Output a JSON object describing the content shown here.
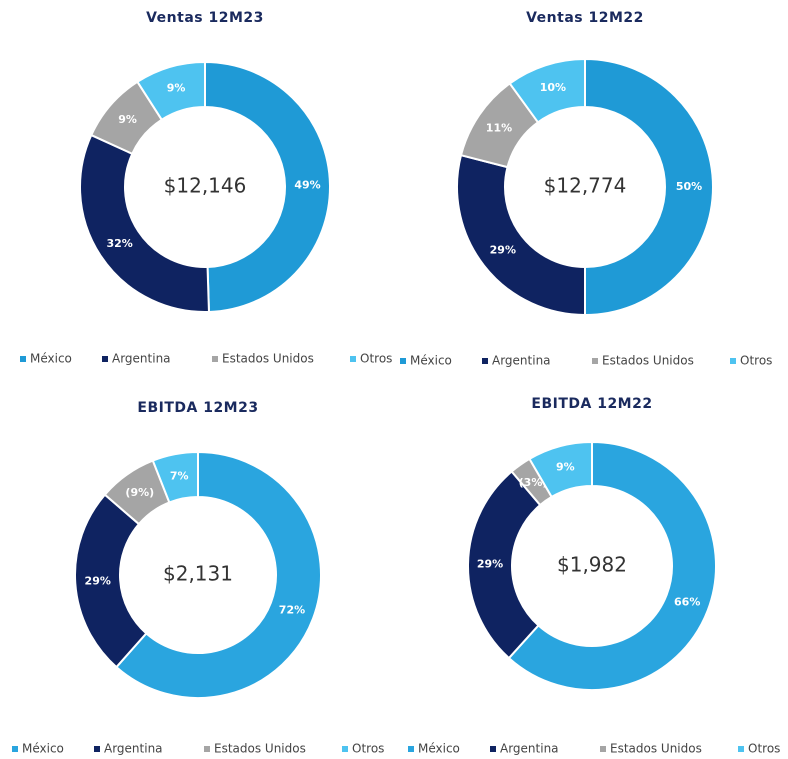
{
  "chart_data": [
    {
      "type": "pie",
      "title": "Ventas 12M23",
      "center_label": "$12,146",
      "categories": [
        "México",
        "Argentina",
        "Estados Unidos",
        "Otros"
      ],
      "values": [
        49,
        32,
        9,
        9
      ],
      "value_labels": [
        "49%",
        "32%",
        "9%",
        "9%"
      ],
      "colors": [
        "#1f9ad6",
        "#0f2361",
        "#a5a5a5",
        "#4ec3f0"
      ]
    },
    {
      "type": "pie",
      "title": "Ventas 12M22",
      "center_label": "$12,774",
      "categories": [
        "México",
        "Argentina",
        "Estados Unidos",
        "Otros"
      ],
      "values": [
        50,
        29,
        11,
        10
      ],
      "value_labels": [
        "50%",
        "29%",
        "11%",
        "10%"
      ],
      "colors": [
        "#1f9ad6",
        "#0f2361",
        "#a5a5a5",
        "#4ec3f0"
      ]
    },
    {
      "type": "pie",
      "title": "EBITDA 12M23",
      "center_label": "$2,131",
      "categories": [
        "México",
        "Argentina",
        "Estados Unidos",
        "Otros"
      ],
      "values": [
        72,
        29,
        -9,
        7
      ],
      "value_labels": [
        "72%",
        "29%",
        "(9%)",
        "7%"
      ],
      "colors": [
        "#2aa5df",
        "#0f2361",
        "#a5a5a5",
        "#4ec3f0"
      ]
    },
    {
      "type": "pie",
      "title": "EBITDA 12M22",
      "center_label": "$1,982",
      "categories": [
        "México",
        "Argentina",
        "Estados Unidos",
        "Otros"
      ],
      "values": [
        66,
        29,
        -3,
        9
      ],
      "value_labels": [
        "66%",
        "29%",
        "(3%)",
        "9%"
      ],
      "colors": [
        "#2aa5df",
        "#0f2361",
        "#a5a5a5",
        "#4ec3f0"
      ]
    }
  ]
}
